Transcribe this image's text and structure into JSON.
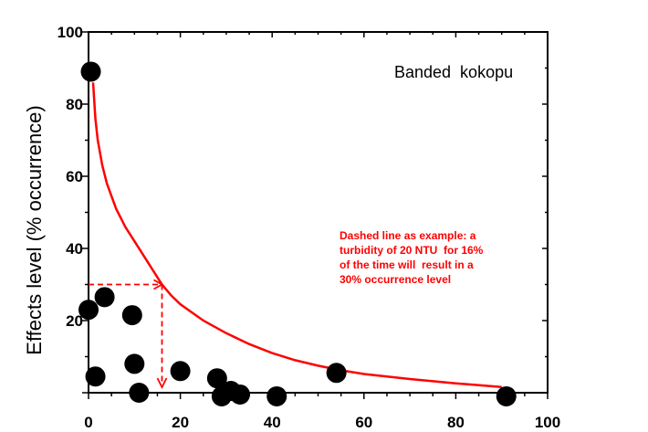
{
  "chart_data": {
    "type": "scatter",
    "title": "",
    "xlabel": "",
    "ylabel": "Effects level (% occurrence)",
    "xlim": [
      0,
      100
    ],
    "ylim": [
      0,
      100
    ],
    "x_ticks": [
      0,
      20,
      40,
      60,
      80,
      100
    ],
    "y_ticks": [
      20,
      40,
      60,
      80,
      100
    ],
    "y_tick_labels": [
      "20",
      "40",
      "60",
      "80",
      "100"
    ],
    "x_tick_labels": [
      "0",
      "20",
      "40",
      "60",
      "80",
      "100"
    ],
    "grid": false,
    "series": [
      {
        "type": "scatter",
        "color": "#000000",
        "points": [
          {
            "x": 0.5,
            "y": 89
          },
          {
            "x": 0,
            "y": 23
          },
          {
            "x": 3.5,
            "y": 26.5
          },
          {
            "x": 9.5,
            "y": 21.5
          },
          {
            "x": 10,
            "y": 8
          },
          {
            "x": 1.5,
            "y": 4.5
          },
          {
            "x": 11,
            "y": 0
          },
          {
            "x": 20,
            "y": 6
          },
          {
            "x": 28,
            "y": 4
          },
          {
            "x": 29,
            "y": -1
          },
          {
            "x": 31,
            "y": 0.5
          },
          {
            "x": 33,
            "y": -0.5
          },
          {
            "x": 41,
            "y": -1
          },
          {
            "x": 54,
            "y": 5.5
          },
          {
            "x": 91,
            "y": -1
          }
        ]
      },
      {
        "type": "line",
        "color": "#ff0000",
        "points": [
          {
            "x": 1,
            "y": 86
          },
          {
            "x": 1.5,
            "y": 76
          },
          {
            "x": 2,
            "y": 70
          },
          {
            "x": 3,
            "y": 63
          },
          {
            "x": 4,
            "y": 58
          },
          {
            "x": 6,
            "y": 51
          },
          {
            "x": 8,
            "y": 46
          },
          {
            "x": 10,
            "y": 42
          },
          {
            "x": 12,
            "y": 38
          },
          {
            "x": 14,
            "y": 34
          },
          {
            "x": 16,
            "y": 30
          },
          {
            "x": 18,
            "y": 27
          },
          {
            "x": 20,
            "y": 24.5
          },
          {
            "x": 25,
            "y": 20
          },
          {
            "x": 30,
            "y": 16.5
          },
          {
            "x": 35,
            "y": 13.5
          },
          {
            "x": 40,
            "y": 11
          },
          {
            "x": 45,
            "y": 9
          },
          {
            "x": 50,
            "y": 7.5
          },
          {
            "x": 55,
            "y": 6.2
          },
          {
            "x": 60,
            "y": 5.2
          },
          {
            "x": 70,
            "y": 3.8
          },
          {
            "x": 80,
            "y": 2.6
          },
          {
            "x": 90,
            "y": 1.6
          }
        ]
      }
    ],
    "example_line": {
      "x": 16,
      "y": 30,
      "color": "#ff0000",
      "style": "dashed"
    },
    "annotations": {
      "species": "Banded  kokopu",
      "note_lines": [
        "Dashed line as example: a",
        "turbidity of 20 NTU  for 16%",
        "of the time will  result in a",
        "30% occurrence level"
      ]
    }
  }
}
